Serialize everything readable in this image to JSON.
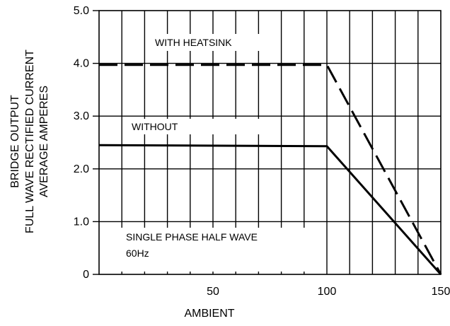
{
  "chart_data": {
    "type": "line",
    "title": "",
    "xlabel": "AMBIENT",
    "ylabel_lines": [
      "BRIDGE OUTPUT",
      "FULL WAVE RECTIFIED CURRENT",
      "AVERAGE AMPERES"
    ],
    "xlim": [
      0,
      150
    ],
    "ylim": [
      0,
      5.0
    ],
    "x_ticks": [
      50,
      100,
      150
    ],
    "y_ticks": [
      {
        "value": 0,
        "label": "0"
      },
      {
        "value": 1.0,
        "label": "1.0"
      },
      {
        "value": 2.0,
        "label": "2.0"
      },
      {
        "value": 3.0,
        "label": "3.0"
      },
      {
        "value": 4.0,
        "label": "4.0"
      },
      {
        "value": 5.0,
        "label": "5.0"
      }
    ],
    "grid": true,
    "series": [
      {
        "name": "WITH HEATSINK",
        "style": "dashed",
        "points": [
          [
            0,
            3.97
          ],
          [
            100,
            3.97
          ],
          [
            150,
            0
          ]
        ]
      },
      {
        "name": "WITHOUT",
        "style": "solid",
        "points": [
          [
            0,
            2.45
          ],
          [
            100,
            2.43
          ],
          [
            150,
            0
          ]
        ]
      }
    ],
    "annotations": {
      "line1": "SINGLE PHASE HALF WAVE",
      "line2": "60Hz"
    }
  }
}
